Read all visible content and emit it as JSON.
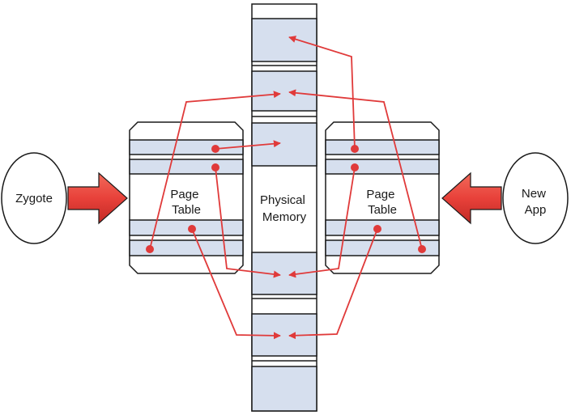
{
  "left_process": {
    "label": "Zygote"
  },
  "right_process": {
    "label_line1": "New",
    "label_line2": "App"
  },
  "left_table": {
    "label_line1": "Page",
    "label_line2": "Table"
  },
  "right_table": {
    "label_line1": "Page",
    "label_line2": "Table"
  },
  "memory": {
    "label_line1": "Physical",
    "label_line2": "Memory"
  },
  "colors": {
    "page_fill": "#d6dfee",
    "outline": "#1a1a1a",
    "arrow_red": "#e03a3a",
    "block_arrow": "#e8413a"
  }
}
